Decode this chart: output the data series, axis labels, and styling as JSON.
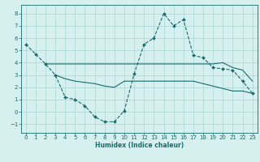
{
  "title": "",
  "xlabel": "Humidex (Indice chaleur)",
  "bg_color": "#d6f0f0",
  "grid_color": "#aad4d4",
  "line_color": "#1a6b6b",
  "xlim": [
    -0.5,
    23.5
  ],
  "ylim": [
    -1.7,
    8.7
  ],
  "xticks": [
    0,
    1,
    2,
    3,
    4,
    5,
    6,
    7,
    8,
    9,
    10,
    11,
    12,
    13,
    14,
    15,
    16,
    17,
    18,
    19,
    20,
    21,
    22,
    23
  ],
  "yticks": [
    -1,
    0,
    1,
    2,
    3,
    4,
    5,
    6,
    7,
    8
  ],
  "line1_x": [
    0,
    1,
    2,
    3,
    4,
    5,
    6,
    7,
    8,
    9,
    10,
    11,
    12,
    13,
    14,
    15,
    16,
    17,
    18,
    19,
    20,
    21,
    22,
    23
  ],
  "line1_y": [
    5.5,
    4.7,
    3.9,
    3.0,
    1.2,
    1.0,
    0.5,
    -0.4,
    -0.8,
    -0.8,
    0.1,
    3.1,
    5.5,
    6.0,
    8.0,
    7.0,
    7.5,
    4.6,
    4.4,
    3.6,
    3.5,
    3.4,
    2.5,
    1.5
  ],
  "line2_x": [
    2,
    3,
    4,
    5,
    6,
    7,
    8,
    9,
    10,
    11,
    12,
    13,
    14,
    15,
    16,
    17,
    18,
    19,
    20,
    21,
    22,
    23
  ],
  "line2_y": [
    3.9,
    3.9,
    3.9,
    3.9,
    3.9,
    3.9,
    3.9,
    3.9,
    3.9,
    3.9,
    3.9,
    3.9,
    3.9,
    3.9,
    3.9,
    3.9,
    3.9,
    3.9,
    4.0,
    3.6,
    3.4,
    2.5
  ],
  "line3_x": [
    3,
    4,
    5,
    6,
    7,
    8,
    9,
    10,
    11,
    12,
    13,
    14,
    15,
    16,
    17,
    18,
    19,
    20,
    21,
    22,
    23
  ],
  "line3_y": [
    3.0,
    2.7,
    2.5,
    2.4,
    2.3,
    2.1,
    2.0,
    2.5,
    2.5,
    2.5,
    2.5,
    2.5,
    2.5,
    2.5,
    2.5,
    2.3,
    2.1,
    1.9,
    1.7,
    1.7,
    1.5
  ],
  "marker_style": "D",
  "linewidth": 0.8,
  "markersize": 2.0,
  "tick_labelsize": 5.0,
  "xlabel_fontsize": 5.5
}
